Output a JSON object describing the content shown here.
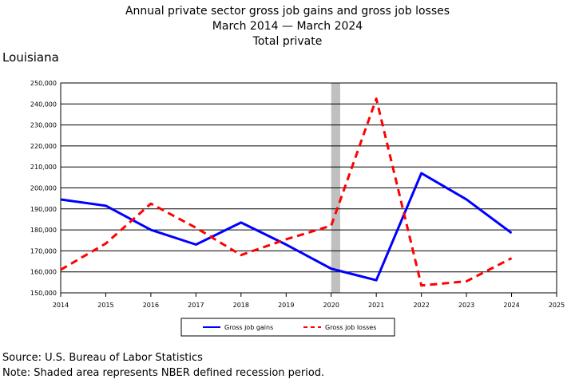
{
  "header": {
    "title_line1": "Annual private sector gross job gains and gross job losses",
    "title_line2": "March 2014 — March 2024",
    "title_line3": "Total private",
    "region": "Louisiana"
  },
  "footer": {
    "source": "Source: U.S. Bureau of Labor Statistics",
    "note": "Note: Shaded area represents NBER defined recession period."
  },
  "chart_data": {
    "type": "line",
    "title": "Annual private sector gross job gains and gross job losses",
    "xlabel": "",
    "ylabel": "",
    "x": [
      2014,
      2015,
      2016,
      2017,
      2018,
      2019,
      2020,
      2021,
      2022,
      2023,
      2024
    ],
    "xlim": [
      2014,
      2025
    ],
    "x_ticks": [
      "2014",
      "2015",
      "2016",
      "2017",
      "2018",
      "2019",
      "2020",
      "2021",
      "2022",
      "2023",
      "2024",
      "2025"
    ],
    "ylim": [
      150000,
      250000
    ],
    "y_ticks": [
      "150,000",
      "160,000",
      "170,000",
      "180,000",
      "190,000",
      "200,000",
      "210,000",
      "220,000",
      "230,000",
      "240,000",
      "250,000"
    ],
    "grid": true,
    "recession_band": [
      2020,
      2020.2
    ],
    "recession_color": "#c0c0c0",
    "legend_position": "bottom",
    "series": [
      {
        "name": "Gross job gains",
        "color": "#0000ff",
        "dash": "solid",
        "values": [
          194500,
          191500,
          180000,
          173000,
          183500,
          173000,
          161500,
          156000,
          207000,
          194500,
          178500
        ]
      },
      {
        "name": "Gross job losses",
        "color": "#ff0000",
        "dash": "dashed",
        "values": [
          161000,
          173500,
          192500,
          181000,
          168000,
          175500,
          182000,
          242500,
          153500,
          155500,
          166500
        ]
      }
    ]
  }
}
